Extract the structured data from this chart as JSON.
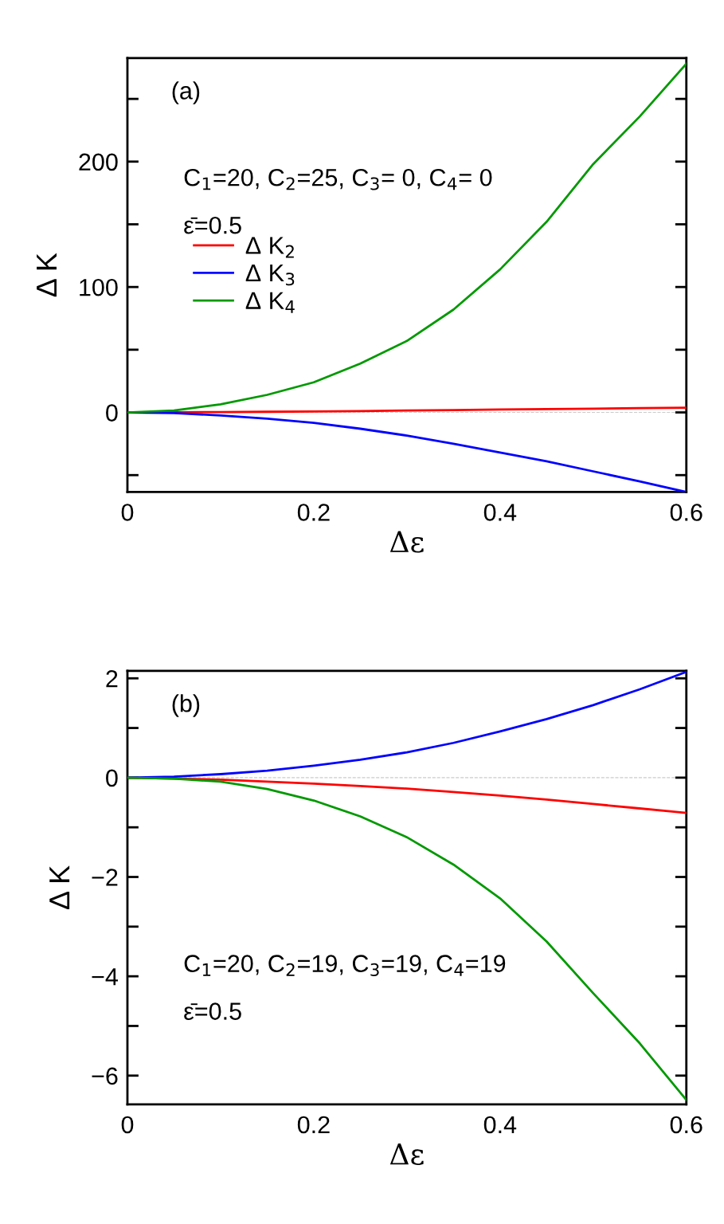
{
  "chart_data": [
    {
      "type": "line",
      "xlabel": "Δε",
      "ylabel": "Δ K",
      "annotations": [
        "(a)",
        "C$_{1}$=20, C$_{2}$=25, C$_{3}$= 0, C$_{4}$= 0",
        "ε̄=0.5"
      ],
      "x": [
        0,
        0.05,
        0.1,
        0.15,
        0.2,
        0.25,
        0.3,
        0.35,
        0.4,
        0.45,
        0.5,
        0.55,
        0.6
      ],
      "series": [
        {
          "name": "Δ K$_{2}$",
          "color": "#ff0000",
          "values": [
            0,
            0.1,
            0.3,
            0.5,
            0.8,
            1.1,
            1.5,
            1.9,
            2.3,
            2.6,
            3.0,
            3.4,
            3.8
          ]
        },
        {
          "name": "Δ K$_{3}$",
          "color": "#0000ff",
          "values": [
            0,
            -0.5,
            -2.4,
            -5,
            -8.3,
            -13,
            -18.5,
            -25,
            -32,
            -39,
            -47,
            -55,
            -63.5
          ]
        },
        {
          "name": "Δ K$_{4}$",
          "color": "#009900",
          "values": [
            0,
            1.5,
            6.5,
            14,
            24,
            39,
            57,
            82,
            114,
            152,
            198,
            236,
            278
          ]
        }
      ],
      "xlim": [
        0,
        0.6
      ],
      "xticks": [
        0,
        0.2,
        0.4,
        0.6
      ],
      "ylim": [
        -63.5,
        282.5
      ],
      "yticks": [
        {
          "value": -50,
          "label": null
        },
        0,
        {
          "value": 50,
          "label": null
        },
        100,
        {
          "value": 150,
          "label": null
        },
        200,
        {
          "value": 250,
          "label": null
        }
      ],
      "ref_lines": [
        {
          "axis": "y",
          "value": 0,
          "color": "#cccccc",
          "line_style": "dashed"
        }
      ],
      "legend": "left",
      "grid": false,
      "marker": "none",
      "line_style": "solid"
    },
    {
      "type": "line",
      "xlabel": "Δε",
      "ylabel": "Δ K",
      "annotations": [
        "(b)",
        "C$_{1}$=20, C$_{2}$=19, C$_{3}$=19, C$_{4}$=19",
        "ε̄=0.5"
      ],
      "x": [
        0,
        0.05,
        0.1,
        0.15,
        0.2,
        0.25,
        0.3,
        0.35,
        0.4,
        0.45,
        0.5,
        0.55,
        0.6
      ],
      "series": [
        {
          "color": "#ff0000",
          "x": [
            0,
            0.1,
            0.15,
            0.2,
            0.25,
            0.3,
            0.35,
            0.4,
            0.45,
            0.5,
            0.55,
            0.6
          ],
          "values": [
            0,
            -0.04,
            -0.08,
            -0.12,
            -0.17,
            -0.22,
            -0.29,
            -0.36,
            -0.44,
            -0.53,
            -0.62,
            -0.71
          ]
        },
        {
          "color": "#0000ff",
          "values": [
            0,
            0.02,
            0.07,
            0.14,
            0.24,
            0.36,
            0.51,
            0.7,
            0.93,
            1.18,
            1.46,
            1.78,
            2.13
          ]
        },
        {
          "color": "#009900",
          "values": [
            0,
            -0.02,
            -0.08,
            -0.23,
            -0.46,
            -0.78,
            -1.2,
            -1.75,
            -2.43,
            -3.3,
            -4.34,
            -5.35,
            -6.49
          ]
        }
      ],
      "xlim": [
        0,
        0.6
      ],
      "xticks": [
        0,
        0.2,
        0.4,
        0.6
      ],
      "ylim": [
        -6.58,
        2.15
      ],
      "yticks": [
        {
          "value": -6,
          "label": "−6"
        },
        {
          "value": -5,
          "label": null
        },
        {
          "value": -4,
          "label": "−4"
        },
        {
          "value": -3,
          "label": null
        },
        {
          "value": -2,
          "label": "−2"
        },
        {
          "value": -1,
          "label": null
        },
        0,
        {
          "value": 1,
          "label": null
        },
        2
      ],
      "ref_lines": [
        {
          "axis": "y",
          "value": 0,
          "color": "#cccccc",
          "line_style": "dashed"
        }
      ],
      "legend": false,
      "grid": false,
      "marker": "none",
      "line_style": "solid"
    }
  ]
}
